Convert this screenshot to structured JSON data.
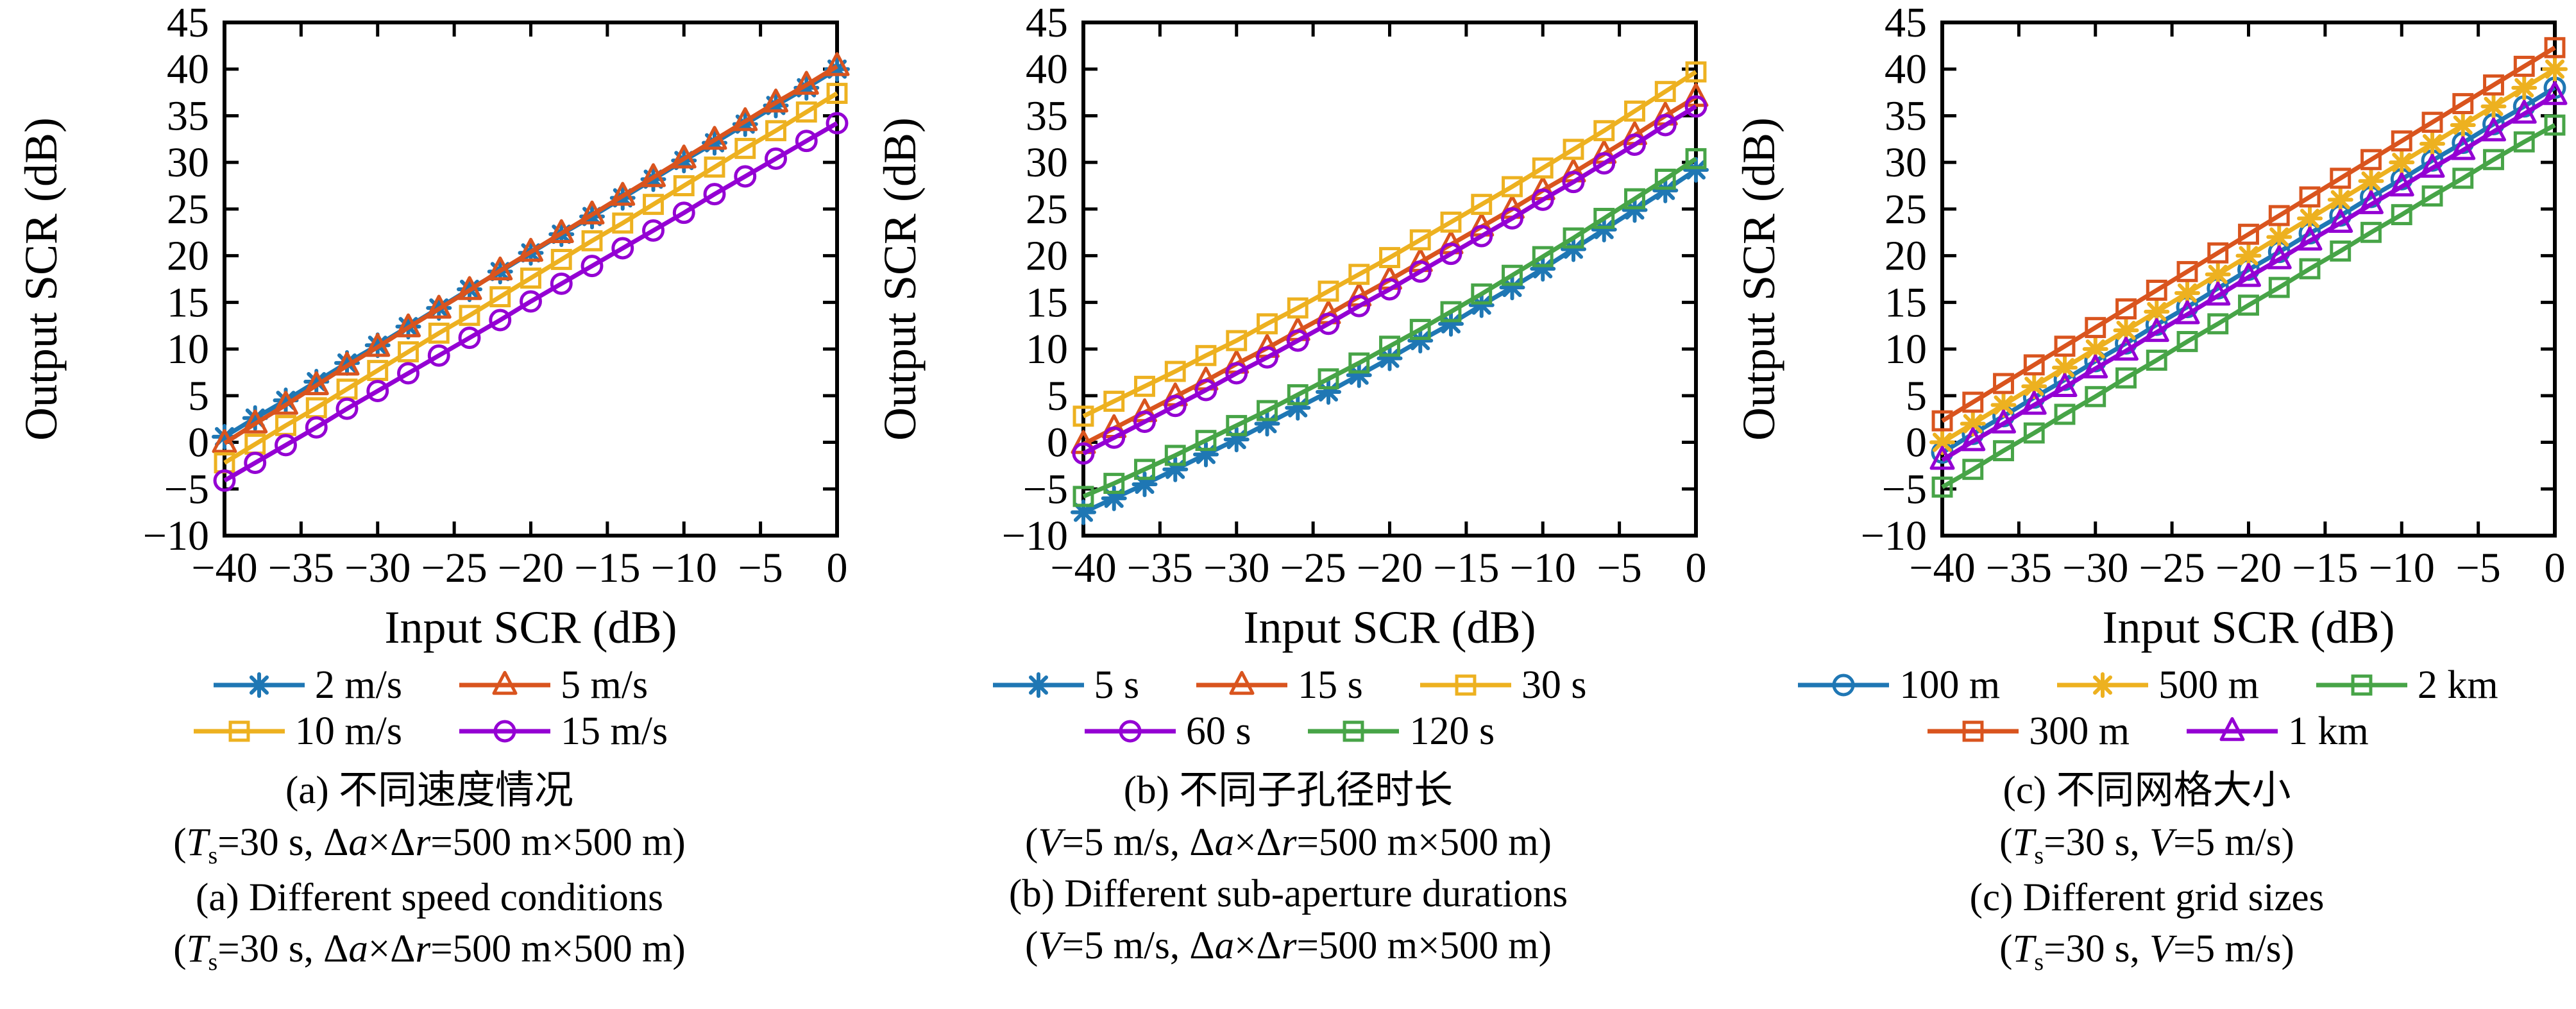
{
  "figure": {
    "background": "#ffffff"
  },
  "axis_style": {
    "stroke": "#000000",
    "tick_len": 22,
    "border_width": 6
  },
  "chart_data": [
    {
      "id": "a",
      "type": "line",
      "xlabel": "Input SCR (dB)",
      "ylabel": "Output SCR (dB)",
      "xlim": [
        -40,
        0
      ],
      "ylim": [
        -10,
        45
      ],
      "xticks": [
        -40,
        -35,
        -30,
        -25,
        -20,
        -15,
        -10,
        -5,
        0
      ],
      "yticks": [
        -10,
        -5,
        0,
        5,
        10,
        15,
        20,
        25,
        30,
        35,
        40,
        45
      ],
      "grid": false,
      "legend_position": "below",
      "x": [
        -40,
        -38,
        -36,
        -34,
        -32,
        -30,
        -28,
        -26,
        -24,
        -22,
        -20,
        -18,
        -16,
        -14,
        -12,
        -10,
        -8,
        -6,
        -4,
        -2,
        0
      ],
      "series": [
        {
          "name": "2 m/s",
          "color": "#1F77B4",
          "marker": "asterisk",
          "values": [
            0.6,
            2.6,
            4.5,
            6.5,
            8.5,
            10.4,
            12.4,
            14.4,
            16.4,
            18.3,
            20.3,
            22.3,
            24.2,
            26.2,
            28.2,
            30.2,
            32.1,
            34.1,
            36.1,
            38.0,
            40.0
          ]
        },
        {
          "name": "5 m/s",
          "color": "#D9541E",
          "marker": "triangle",
          "values": [
            -0.1,
            2.0,
            4.0,
            6.1,
            8.2,
            10.2,
            12.3,
            14.3,
            16.3,
            18.4,
            20.4,
            22.4,
            24.4,
            26.4,
            28.4,
            30.4,
            32.4,
            34.4,
            36.4,
            38.3,
            40.3
          ]
        },
        {
          "name": "10 m/s",
          "color": "#EDB120",
          "marker": "square",
          "values": [
            -2.2,
            -0.2,
            1.8,
            3.7,
            5.7,
            7.7,
            9.7,
            11.7,
            13.6,
            15.6,
            17.6,
            19.6,
            21.6,
            23.5,
            25.5,
            27.5,
            29.5,
            31.5,
            33.4,
            35.4,
            37.4
          ]
        },
        {
          "name": "15 m/s",
          "color": "#9400D3",
          "marker": "circle",
          "values": [
            -4.1,
            -2.2,
            -0.3,
            1.6,
            3.6,
            5.5,
            7.4,
            9.3,
            11.2,
            13.1,
            15.1,
            17.0,
            18.9,
            20.8,
            22.7,
            24.6,
            26.6,
            28.5,
            30.4,
            32.3,
            34.2
          ]
        }
      ],
      "legend_rows": [
        [
          "2 m/s",
          "5 m/s"
        ],
        [
          "10 m/s",
          "15 m/s"
        ]
      ],
      "captions": [
        "(a) 不同速度情况",
        "(T_s=30 s, Δa×Δr=500 m×500 m)",
        "(a) Different speed conditions",
        "(T_s=30 s, Δa×Δr=500 m×500 m)"
      ]
    },
    {
      "id": "b",
      "type": "line",
      "xlabel": "Input SCR (dB)",
      "ylabel": "Output SCR (dB)",
      "xlim": [
        -40,
        0
      ],
      "ylim": [
        -10,
        45
      ],
      "xticks": [
        -40,
        -35,
        -30,
        -25,
        -20,
        -15,
        -10,
        -5,
        0
      ],
      "yticks": [
        -10,
        -5,
        0,
        5,
        10,
        15,
        20,
        25,
        30,
        35,
        40,
        45
      ],
      "grid": false,
      "legend_position": "below",
      "x": [
        -40,
        -38,
        -36,
        -34,
        -32,
        -30,
        -28,
        -26,
        -24,
        -22,
        -20,
        -18,
        -16,
        -14,
        -12,
        -10,
        -8,
        -6,
        -4,
        -2,
        0
      ],
      "series": [
        {
          "name": "5 s",
          "color": "#1F77B4",
          "marker": "asterisk",
          "values": [
            -7.5,
            -6.0,
            -4.5,
            -2.9,
            -1.3,
            0.3,
            2.0,
            3.7,
            5.4,
            7.2,
            9.0,
            10.9,
            12.7,
            14.7,
            16.6,
            18.6,
            20.7,
            22.8,
            24.9,
            27.0,
            29.2
          ]
        },
        {
          "name": "15 s",
          "color": "#D9541E",
          "marker": "triangle",
          "values": [
            -0.2,
            1.5,
            3.2,
            4.9,
            6.6,
            8.4,
            10.1,
            11.9,
            13.7,
            15.6,
            17.4,
            19.3,
            21.2,
            23.1,
            25.0,
            27.0,
            28.9,
            30.9,
            32.9,
            35.0,
            37.0
          ]
        },
        {
          "name": "30 s",
          "color": "#EDB120",
          "marker": "square",
          "values": [
            2.8,
            4.4,
            6.0,
            7.6,
            9.3,
            10.9,
            12.7,
            14.4,
            16.2,
            18.0,
            19.8,
            21.7,
            23.6,
            25.5,
            27.4,
            29.4,
            31.4,
            33.4,
            35.5,
            37.6,
            39.7
          ]
        },
        {
          "name": "60 s",
          "color": "#9400D3",
          "marker": "circle",
          "values": [
            -1.2,
            0.5,
            2.2,
            3.9,
            5.6,
            7.4,
            9.1,
            10.9,
            12.7,
            14.6,
            16.4,
            18.3,
            20.2,
            22.1,
            24.0,
            26.0,
            27.9,
            29.9,
            31.9,
            34.0,
            36.0
          ]
        },
        {
          "name": "120 s",
          "color": "#47A447",
          "marker": "square",
          "values": [
            -5.8,
            -4.4,
            -2.9,
            -1.4,
            0.2,
            1.8,
            3.4,
            5.1,
            6.8,
            8.5,
            10.3,
            12.1,
            14.0,
            15.9,
            17.9,
            19.9,
            21.9,
            24.0,
            26.1,
            28.2,
            30.4
          ]
        }
      ],
      "legend_rows": [
        [
          "5 s",
          "15 s",
          "30 s"
        ],
        [
          "60 s",
          "120 s"
        ]
      ],
      "captions": [
        "(b) 不同子孔径时长",
        "(V=5 m/s, Δa×Δr=500 m×500 m)",
        "(b) Different sub-aperture durations",
        "(V=5 m/s, Δa×Δr=500 m×500 m)"
      ]
    },
    {
      "id": "c",
      "type": "line",
      "xlabel": "Input SCR (dB)",
      "ylabel": "Output SCR (dB)",
      "xlim": [
        -40,
        0
      ],
      "ylim": [
        -10,
        45
      ],
      "xticks": [
        -40,
        -35,
        -30,
        -25,
        -20,
        -15,
        -10,
        -5,
        0
      ],
      "yticks": [
        -10,
        -5,
        0,
        5,
        10,
        15,
        20,
        25,
        30,
        35,
        40,
        45
      ],
      "grid": false,
      "legend_position": "below",
      "x": [
        -40,
        -38,
        -36,
        -34,
        -32,
        -30,
        -28,
        -26,
        -24,
        -22,
        -20,
        -18,
        -16,
        -14,
        -12,
        -10,
        -8,
        -6,
        -4,
        -2,
        0
      ],
      "series": [
        {
          "name": "100 m",
          "color": "#1F77B4",
          "marker": "circle",
          "values": [
            -1.1,
            0.9,
            2.8,
            4.8,
            6.7,
            8.7,
            10.6,
            12.6,
            14.5,
            16.5,
            18.5,
            20.4,
            22.4,
            24.3,
            26.3,
            28.2,
            30.2,
            32.1,
            34.1,
            36.0,
            38.0
          ]
        },
        {
          "name": "500 m",
          "color": "#EDB120",
          "marker": "asterisk",
          "values": [
            0.0,
            2.0,
            4.0,
            6.0,
            8.0,
            10.0,
            12.0,
            14.0,
            16.0,
            18.0,
            20.0,
            22.0,
            24.0,
            26.0,
            28.0,
            30.0,
            32.0,
            34.0,
            36.0,
            38.0,
            40.0
          ]
        },
        {
          "name": "2 km",
          "color": "#47A447",
          "marker": "square",
          "values": [
            -4.8,
            -2.9,
            -0.9,
            1.0,
            3.0,
            4.9,
            6.9,
            8.8,
            10.8,
            12.7,
            14.7,
            16.6,
            18.6,
            20.5,
            22.5,
            24.4,
            26.4,
            28.3,
            30.3,
            32.2,
            34.0
          ]
        },
        {
          "name": "300 m",
          "color": "#D9541E",
          "marker": "square",
          "values": [
            2.3,
            4.3,
            6.3,
            8.3,
            10.3,
            12.3,
            14.3,
            16.3,
            18.3,
            20.3,
            22.3,
            24.3,
            26.3,
            28.3,
            30.3,
            32.3,
            34.3,
            36.3,
            38.3,
            40.3,
            42.3
          ]
        },
        {
          "name": "1 km",
          "color": "#9400D3",
          "marker": "triangle",
          "values": [
            -1.9,
            0.1,
            2.0,
            4.0,
            5.9,
            7.9,
            9.8,
            11.8,
            13.7,
            15.7,
            17.7,
            19.6,
            21.6,
            23.5,
            25.5,
            27.4,
            29.4,
            31.3,
            33.3,
            35.2,
            37.2
          ]
        }
      ],
      "legend_rows": [
        [
          "100 m",
          "500 m",
          "2 km"
        ],
        [
          "300 m",
          "1 km"
        ]
      ],
      "captions": [
        "(c) 不同网格大小",
        "(T_s=30 s, V=5 m/s)",
        "(c) Different grid sizes",
        "(T_s=30 s, V=5 m/s)"
      ]
    }
  ]
}
